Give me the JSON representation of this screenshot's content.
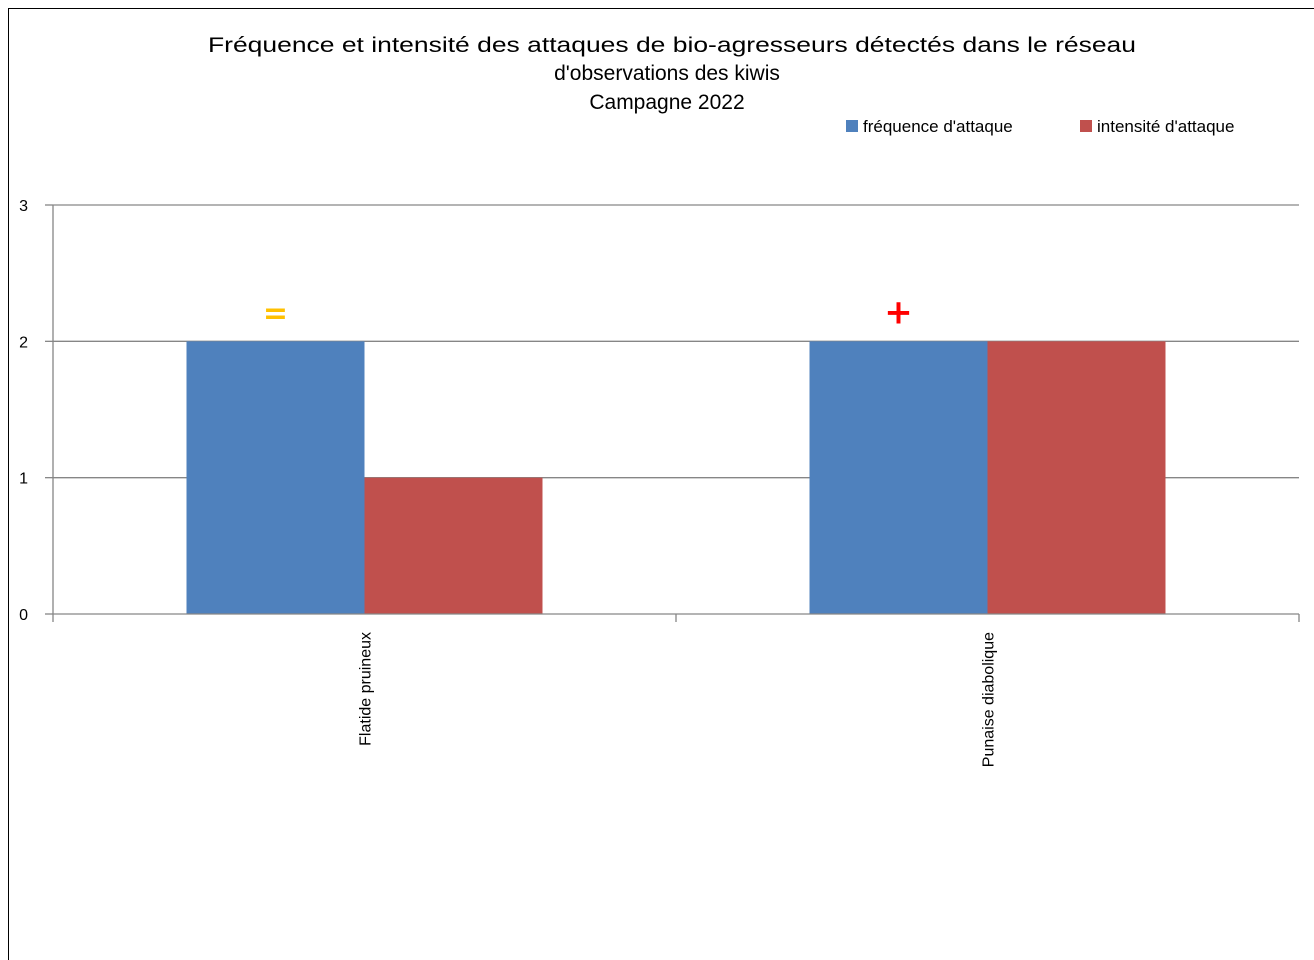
{
  "chart_data": {
    "type": "bar",
    "title": "Fréquence et intensité des attaques de bio-agresseurs détectés dans le réseau d'observations des kiwis Campagne 2022",
    "title_lines": [
      "Fréquence et intensité des attaques de bio-agresseurs détectés dans le réseau",
      "d'observations des kiwis",
      "Campagne 2022"
    ],
    "categories": [
      "Flatide pruineux",
      "Punaise diabolique"
    ],
    "series": [
      {
        "name": "fréquence d'attaque",
        "values": [
          2,
          2
        ],
        "color": "#4F81BD"
      },
      {
        "name": "intensité d'attaque",
        "values": [
          1,
          2
        ],
        "color": "#C0504D"
      }
    ],
    "annotations": [
      {
        "category": "Flatide pruineux",
        "text": "=",
        "color": "#FFC000"
      },
      {
        "category": "Punaise diabolique",
        "text": "+",
        "color": "#FF0000"
      }
    ],
    "ylim": [
      0,
      3
    ],
    "yticks": [
      0,
      1,
      2,
      3
    ],
    "xlabel": "",
    "ylabel": "",
    "grid": true,
    "legend": "top-right",
    "gridline_color": "#868686"
  }
}
